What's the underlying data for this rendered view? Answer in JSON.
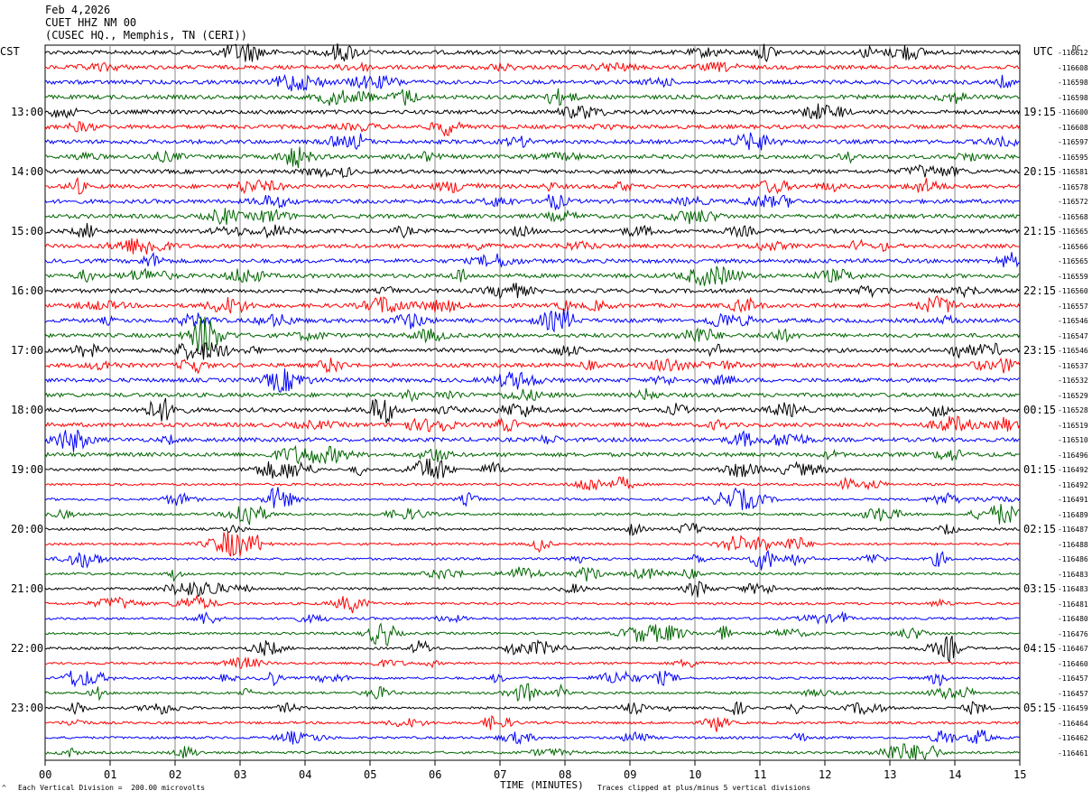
{
  "header": {
    "date": "Feb 4,2026",
    "station": "CUET HHZ NM 00",
    "location": "(CUSEC HQ., Memphis, TN (CERI))"
  },
  "left_tz": "CST",
  "right_tz": "UTC",
  "dc_label": "DC",
  "footer": {
    "scale": "Each Vertical Division =  200.00 microvolts",
    "clip": "Traces clipped at plus/minus 5 vertical divisions"
  },
  "chart_data": {
    "type": "line",
    "xlabel": "TIME (MINUTES)",
    "xlim": [
      0,
      15
    ],
    "x_ticks": [
      "00",
      "01",
      "02",
      "03",
      "04",
      "05",
      "06",
      "07",
      "08",
      "09",
      "10",
      "11",
      "12",
      "13",
      "14",
      "15"
    ],
    "trace_count": 48,
    "trace_colors": [
      "#000000",
      "#ff0000",
      "#0000ff",
      "#006600"
    ],
    "left_hour_labels": [
      "13:00",
      "14:00",
      "15:00",
      "16:00",
      "17:00",
      "18:00",
      "19:00",
      "20:00",
      "21:00",
      "22:00",
      "23:00"
    ],
    "right_hour_labels": [
      "19:15",
      "20:15",
      "21:15",
      "22:15",
      "23:15",
      "00:15",
      "01:15",
      "02:15",
      "03:15",
      "04:15",
      "05:15"
    ],
    "dc_offsets": [
      "-116612",
      "-116608",
      "-116598",
      "-116598",
      "-116600",
      "-116608",
      "-116597",
      "-116595",
      "-116581",
      "-116578",
      "-116572",
      "-116568",
      "-116565",
      "-116566",
      "-116565",
      "-116559",
      "-116560",
      "-116557",
      "-116546",
      "-116547",
      "-116546",
      "-116537",
      "-116532",
      "-116529",
      "-116528",
      "-116519",
      "-116510",
      "-116496",
      "-116492",
      "-116492",
      "-116491",
      "-116489",
      "-116487",
      "-116488",
      "-116486",
      "-116483",
      "-116483",
      "-116481",
      "-116480",
      "-116476",
      "-116467",
      "-116460",
      "-116457",
      "-116457",
      "-116459",
      "-116464",
      "-116462",
      "-116461"
    ]
  }
}
